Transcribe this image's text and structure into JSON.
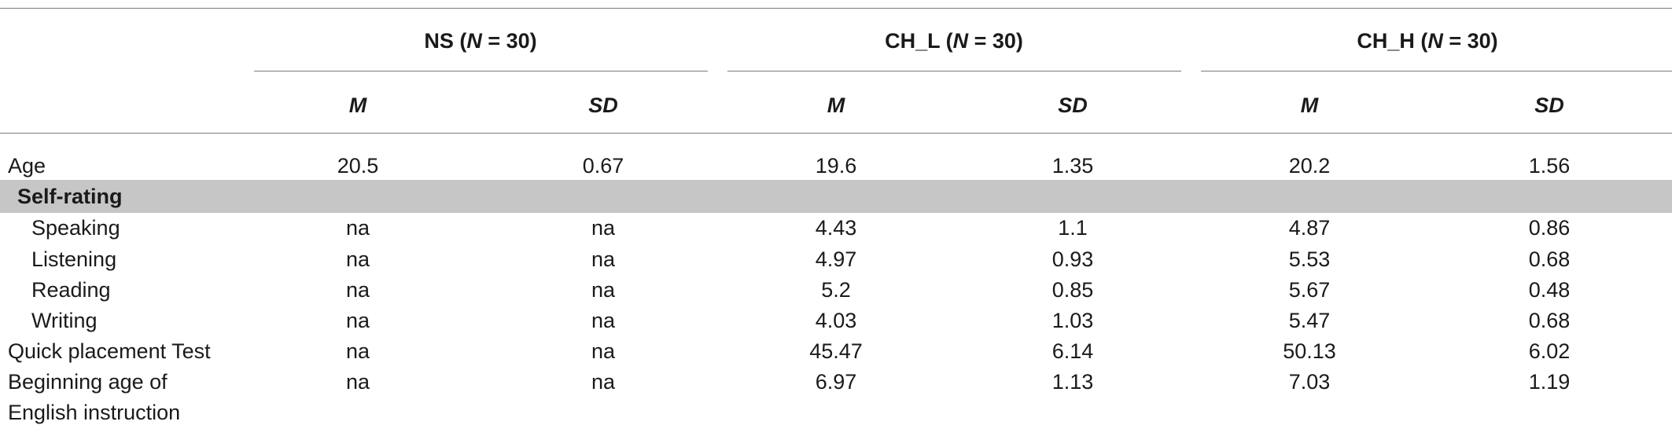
{
  "groups": [
    {
      "name": "NS",
      "n_label": "N",
      "n_value": "= 30"
    },
    {
      "name": "CH_L",
      "n_label": "N",
      "n_value": "= 30"
    },
    {
      "name": "CH_H",
      "n_label": "N",
      "n_value": "= 30"
    }
  ],
  "stats": [
    "M",
    "SD",
    "M",
    "SD",
    "M",
    "SD"
  ],
  "section_label": "Self-rating",
  "rows": [
    {
      "label": "Age",
      "values": [
        "20.5",
        "0.67",
        "19.6",
        "1.35",
        "20.2",
        "1.56"
      ]
    },
    {
      "label": "Speaking",
      "values": [
        "na",
        "na",
        "4.43",
        "1.1",
        "4.87",
        "0.86"
      ]
    },
    {
      "label": "Listening",
      "values": [
        "na",
        "na",
        "4.97",
        "0.93",
        "5.53",
        "0.68"
      ]
    },
    {
      "label": "Reading",
      "values": [
        "na",
        "na",
        "5.2",
        "0.85",
        "5.67",
        "0.48"
      ]
    },
    {
      "label": "Writing",
      "values": [
        "na",
        "na",
        "4.03",
        "1.03",
        "5.47",
        "0.68"
      ]
    },
    {
      "label": "Quick placement Test",
      "values": [
        "na",
        "na",
        "45.47",
        "6.14",
        "50.13",
        "6.02"
      ]
    },
    {
      "label": "Beginning age of",
      "label_line2": "English instruction",
      "values": [
        "na",
        "na",
        "6.97",
        "1.13",
        "7.03",
        "1.19"
      ]
    }
  ]
}
